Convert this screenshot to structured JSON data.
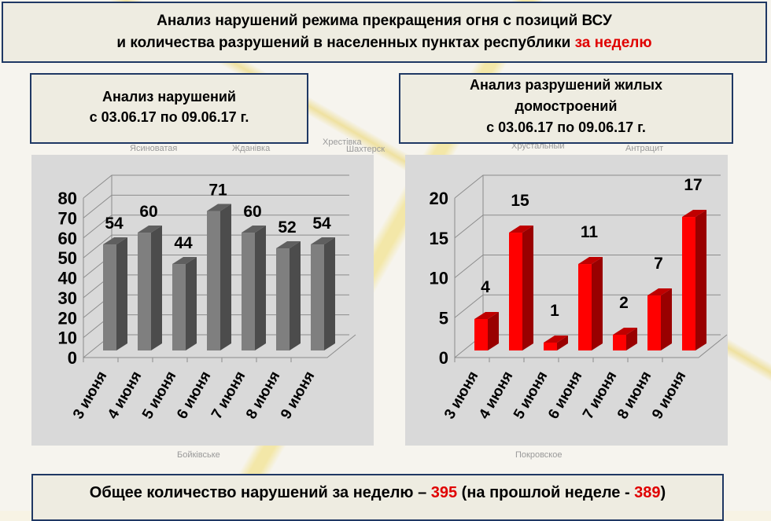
{
  "header": {
    "line1": "Анализ нарушений режима прекращения огня с позиций ВСУ",
    "line2_a": "и количества разрушений в населенных пунктах республики ",
    "line2_b": "за неделю"
  },
  "left_panel": {
    "line1": "Анализ нарушений",
    "line2": "с 03.06.17 по 09.06.17 г."
  },
  "right_panel": {
    "line1": "Анализ разрушений жилых",
    "line2": "домостроений",
    "line3": "с 03.06.17 по 09.06.17 г."
  },
  "map_labels": [
    "Ясиноватая",
    "Жданівка",
    "Хрестівка",
    "Хрустальный",
    "Антрацит",
    "Бойківське",
    "Покровское",
    "Шахтерск"
  ],
  "footer": {
    "text_a": "Общее количество нарушений за неделю – ",
    "total": "395",
    "text_b": " (на прошлой неделе - ",
    "prev": "389",
    "text_c": ")"
  },
  "colors": {
    "gray_bar": "#7f7f7f",
    "red_bar": "#ff0000",
    "accent_red": "#e00000",
    "border": "#1f3864"
  },
  "chart_data": [
    {
      "type": "bar",
      "style": "3d",
      "categories": [
        "3 июня",
        "4 июня",
        "5 июня",
        "6 июня",
        "7 июня",
        "8 июня",
        "9 июня"
      ],
      "values": [
        54,
        60,
        44,
        71,
        60,
        52,
        54
      ],
      "yticks": [
        "0",
        "10",
        "20",
        "30",
        "40",
        "50",
        "60",
        "70",
        "80"
      ],
      "ylim": [
        0,
        80
      ],
      "grid": true,
      "color": "#7f7f7f"
    },
    {
      "type": "bar",
      "style": "3d",
      "categories": [
        "3 июня",
        "4 июня",
        "5 июня",
        "6 июня",
        "7 июня",
        "8 июня",
        "9 июня"
      ],
      "values": [
        4,
        15,
        1,
        11,
        2,
        7,
        17
      ],
      "yticks": [
        "0",
        "5",
        "10",
        "15",
        "20"
      ],
      "ylim": [
        0,
        20
      ],
      "grid": true,
      "color": "#ff0000"
    }
  ]
}
